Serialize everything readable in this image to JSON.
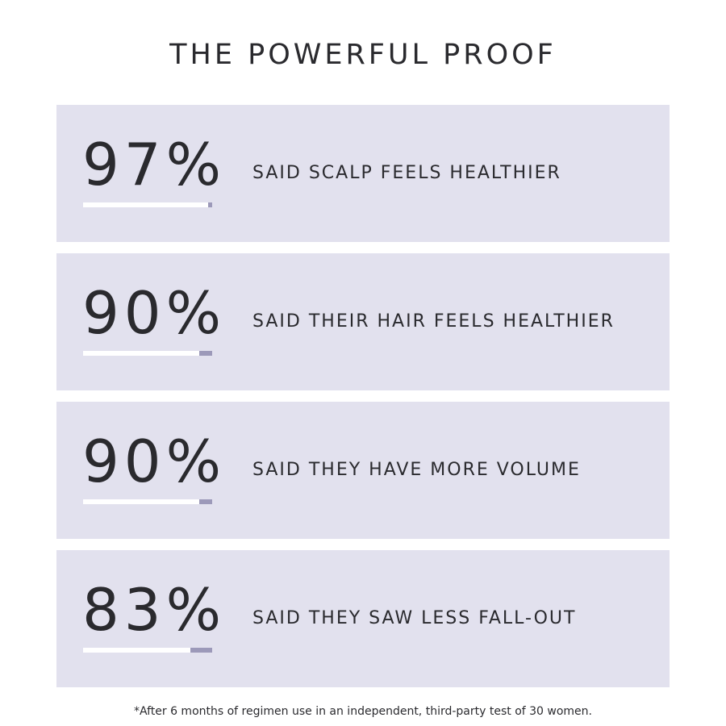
{
  "header": {
    "title": "THE POWERFUL PROOF"
  },
  "stats": [
    {
      "value": "97%",
      "percent": 97,
      "label": "SAID SCALP FEELS HEALTHIER"
    },
    {
      "value": "90%",
      "percent": 90,
      "label": "SAID THEIR HAIR FEELS HEALTHIER"
    },
    {
      "value": "90%",
      "percent": 90,
      "label": "SAID THEY HAVE MORE VOLUME"
    },
    {
      "value": "83%",
      "percent": 83,
      "label": "SAID THEY SAW LESS FALL-OUT"
    }
  ],
  "footnote": "*After 6 months of regimen use in an independent, third-party test of 30 women.",
  "colors": {
    "card_background": "#e2e1ee",
    "bar_remainder": "#9c99b9",
    "bar_fill": "#ffffff",
    "text": "#2a2a2e"
  }
}
